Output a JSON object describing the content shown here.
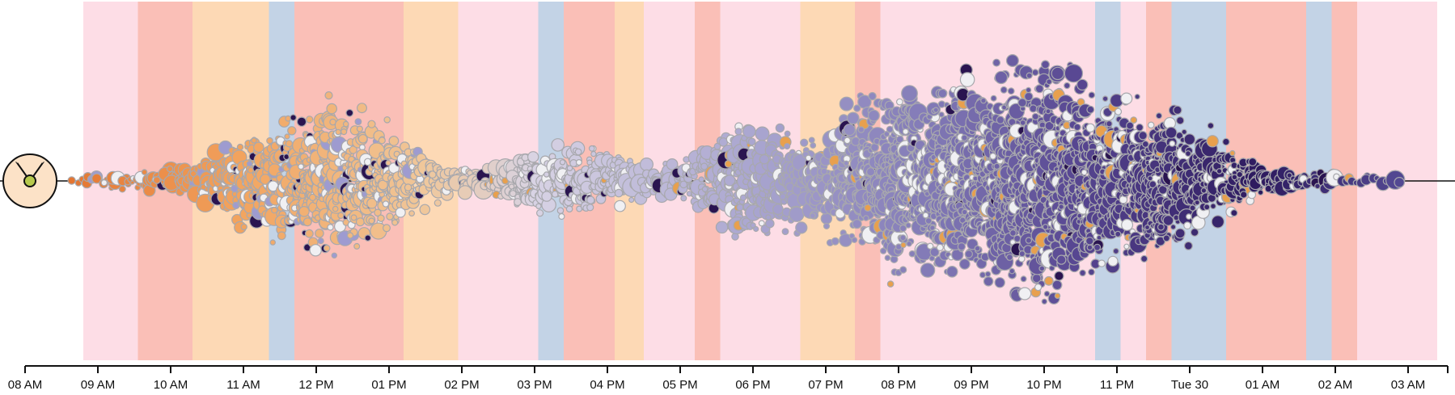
{
  "chart_data": {
    "type": "beeswarm",
    "title": "",
    "xlabel": "",
    "ylabel": "",
    "x_axis": {
      "ticks": [
        "08 AM",
        "09 AM",
        "10 AM",
        "11 AM",
        "12 PM",
        "01 PM",
        "02 PM",
        "03 PM",
        "04 PM",
        "05 PM",
        "06 PM",
        "07 PM",
        "08 PM",
        "09 PM",
        "10 PM",
        "11 PM",
        "Tue 30",
        "01 AM",
        "02 AM",
        "03 AM"
      ],
      "range_hours": [
        8.0,
        27.4
      ]
    },
    "background_bands": [
      {
        "start": 8.8,
        "end": 9.55,
        "color": "#fddde6"
      },
      {
        "start": 9.55,
        "end": 10.3,
        "color": "#fabfb7"
      },
      {
        "start": 10.3,
        "end": 11.35,
        "color": "#fdd9b5"
      },
      {
        "start": 11.35,
        "end": 11.7,
        "color": "#c3d3e6"
      },
      {
        "start": 11.7,
        "end": 13.2,
        "color": "#fabfb7"
      },
      {
        "start": 13.2,
        "end": 13.95,
        "color": "#fdd9b5"
      },
      {
        "start": 13.95,
        "end": 15.05,
        "color": "#fddde6"
      },
      {
        "start": 15.05,
        "end": 15.4,
        "color": "#c3d3e6"
      },
      {
        "start": 15.4,
        "end": 16.1,
        "color": "#fabfb7"
      },
      {
        "start": 16.1,
        "end": 16.5,
        "color": "#fdd9b5"
      },
      {
        "start": 16.5,
        "end": 17.2,
        "color": "#fddde6"
      },
      {
        "start": 17.2,
        "end": 17.55,
        "color": "#fabfb7"
      },
      {
        "start": 17.55,
        "end": 18.65,
        "color": "#fddde6"
      },
      {
        "start": 18.65,
        "end": 19.4,
        "color": "#fdd9b5"
      },
      {
        "start": 19.4,
        "end": 19.75,
        "color": "#fabfb7"
      },
      {
        "start": 19.75,
        "end": 22.7,
        "color": "#fddde6"
      },
      {
        "start": 22.7,
        "end": 23.05,
        "color": "#c3d3e6"
      },
      {
        "start": 23.05,
        "end": 23.4,
        "color": "#fddde6"
      },
      {
        "start": 23.4,
        "end": 23.75,
        "color": "#fabfb7"
      },
      {
        "start": 23.75,
        "end": 24.5,
        "color": "#c3d3e6"
      },
      {
        "start": 24.5,
        "end": 25.6,
        "color": "#fabfb7"
      },
      {
        "start": 25.6,
        "end": 25.95,
        "color": "#c3d3e6"
      },
      {
        "start": 25.95,
        "end": 26.3,
        "color": "#fabfb7"
      },
      {
        "start": 26.3,
        "end": 27.4,
        "color": "#fddde6"
      }
    ],
    "density": [
      {
        "hour": 8.8,
        "count": 12,
        "half_width": 10
      },
      {
        "hour": 9.5,
        "count": 20,
        "half_width": 12
      },
      {
        "hour": 10.3,
        "count": 38,
        "half_width": 22
      },
      {
        "hour": 11.0,
        "count": 150,
        "half_width": 70
      },
      {
        "hour": 11.6,
        "count": 180,
        "half_width": 90
      },
      {
        "hour": 12.2,
        "count": 200,
        "half_width": 118
      },
      {
        "hour": 12.7,
        "count": 170,
        "half_width": 105
      },
      {
        "hour": 13.3,
        "count": 100,
        "half_width": 55
      },
      {
        "hour": 13.9,
        "count": 40,
        "half_width": 20
      },
      {
        "hour": 14.3,
        "count": 35,
        "half_width": 22
      },
      {
        "hour": 14.9,
        "count": 90,
        "half_width": 45
      },
      {
        "hour": 15.5,
        "count": 110,
        "half_width": 58
      },
      {
        "hour": 16.1,
        "count": 80,
        "half_width": 50
      },
      {
        "hour": 16.5,
        "count": 45,
        "half_width": 28
      },
      {
        "hour": 17.2,
        "count": 70,
        "half_width": 40
      },
      {
        "hour": 17.8,
        "count": 150,
        "half_width": 100
      },
      {
        "hour": 18.3,
        "count": 130,
        "half_width": 90
      },
      {
        "hour": 18.8,
        "count": 110,
        "half_width": 60
      },
      {
        "hour": 19.3,
        "count": 190,
        "half_width": 110
      },
      {
        "hour": 20.0,
        "count": 320,
        "half_width": 150
      },
      {
        "hour": 21.0,
        "count": 340,
        "half_width": 145
      },
      {
        "hour": 22.0,
        "count": 400,
        "half_width": 185
      },
      {
        "hour": 22.7,
        "count": 300,
        "half_width": 140
      },
      {
        "hour": 23.5,
        "count": 250,
        "half_width": 120
      },
      {
        "hour": 24.2,
        "count": 150,
        "half_width": 80
      },
      {
        "hour": 24.9,
        "count": 60,
        "half_width": 28
      },
      {
        "hour": 25.6,
        "count": 30,
        "half_width": 18
      },
      {
        "hour": 26.1,
        "count": 8,
        "half_width": 8
      },
      {
        "hour": 26.8,
        "count": 6,
        "half_width": 7
      }
    ],
    "color_scale": {
      "stops": [
        {
          "hour": 8.0,
          "color": "#e06a26"
        },
        {
          "hour": 11.0,
          "color": "#f2a45f"
        },
        {
          "hour": 13.5,
          "color": "#f0c79a"
        },
        {
          "hour": 15.0,
          "color": "#d8d3e4"
        },
        {
          "hour": 18.0,
          "color": "#aaa6d0"
        },
        {
          "hour": 20.5,
          "color": "#8179b6"
        },
        {
          "hour": 22.5,
          "color": "#574691"
        },
        {
          "hour": 25.0,
          "color": "#2d1a5e"
        },
        {
          "hour": 27.4,
          "color": "#5d55a0"
        }
      ],
      "accent_colors": [
        "#f0f0f3",
        "#e8a04e",
        "#2a1450",
        "#9e9bd0"
      ]
    },
    "marker_icon": "sun-clock-icon"
  }
}
